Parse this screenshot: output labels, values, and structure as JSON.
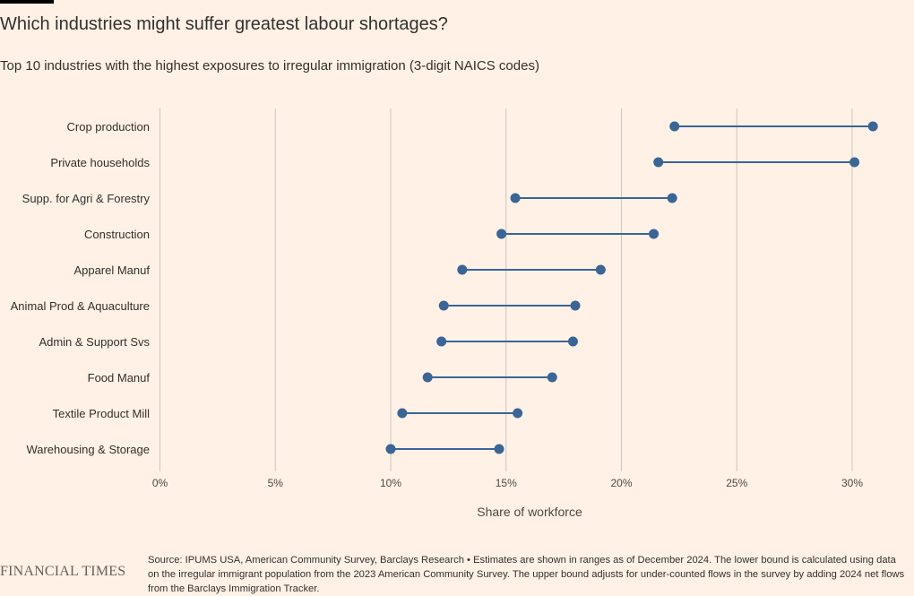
{
  "title": "Which industries might suffer greatest labour shortages?",
  "subtitle": "Top 10 industries with the highest exposures to irregular immigration (3-digit NAICS codes)",
  "logo": "FINANCIAL TIMES",
  "source": "Source: IPUMS USA, American Community Survey, Barclays Research • Estimates are shown in ranges as of December 2024. The lower bound is calculated using data on the irregular immigrant population from the 2023 American Community Survey. The upper bound adjusts for under-counted flows in the survey by adding 2024 net flows from the Barclays Immigration Tracker.",
  "colors": {
    "background": "#FFF1E5",
    "dot": "#3A6596",
    "line": "#3A6596",
    "grid": "#CDC6C0"
  },
  "chart_data": {
    "type": "dumbbell",
    "title": "Which industries might suffer greatest labour shortages?",
    "subtitle": "Top 10 industries with the highest exposures to irregular immigration (3-digit NAICS codes)",
    "xlabel": "Share of workforce",
    "xlim": [
      0,
      31
    ],
    "xticks": [
      0,
      5,
      10,
      15,
      20,
      25,
      30
    ],
    "xtick_labels": [
      "0%",
      "5%",
      "10%",
      "15%",
      "20%",
      "25%",
      "30%"
    ],
    "grid": "vertical",
    "categories": [
      "Crop production",
      "Private households",
      "Supp. for Agri & Forestry",
      "Construction",
      "Apparel Manuf",
      "Animal Prod & Aquaculture",
      "Admin & Support Svs",
      "Food Manuf",
      "Textile Product Mill",
      "Warehousing & Storage"
    ],
    "series": [
      {
        "name": "",
        "values": [
          22.3,
          21.6,
          15.4,
          14.8,
          13.1,
          12.3,
          12.2,
          11.6,
          10.5,
          10.0
        ]
      },
      {
        "name": "",
        "values": [
          30.9,
          30.1,
          22.2,
          21.4,
          19.1,
          18.0,
          17.9,
          17.0,
          15.5,
          14.7
        ]
      }
    ]
  }
}
